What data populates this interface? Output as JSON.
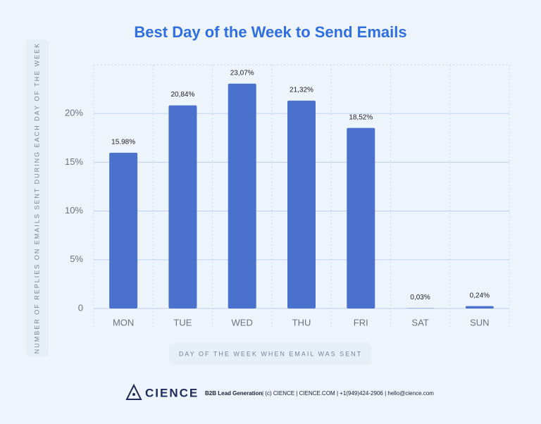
{
  "chart_data": {
    "type": "bar",
    "title": "Best Day of the Week to Send Emails",
    "y_label": "NUMBER OF REPLIES ON EMAILS SENT DURING EACH DAY OF THE WEEK",
    "x_label": "DAY OF THE WEEK WHEN EMAIL WAS SENT",
    "categories": [
      "MON",
      "TUE",
      "WED",
      "THU",
      "FRI",
      "SAT",
      "SUN"
    ],
    "values": [
      15.98,
      20.84,
      23.07,
      21.32,
      18.52,
      0.03,
      0.24
    ],
    "value_labels": [
      "15.98%",
      "20,84%",
      "23,07%",
      "21,32%",
      "18,52%",
      "0,03%",
      "0,24%"
    ],
    "color": "#4a72cc",
    "ylim": [
      0,
      25
    ],
    "yticks": [
      0,
      {
        "value": 5,
        "label": "5%"
      },
      {
        "value": 10,
        "label": "10%"
      },
      {
        "value": 15,
        "label": "15%"
      },
      {
        "value": 20,
        "label": "20%"
      }
    ],
    "grid": true
  },
  "footer": {
    "brand": "CIENCE",
    "tagline": "B2B Lead Generation",
    "contact": "| (c) CIENCE | CIENCE.COM | +1(949)424-2906 | hello@cience.com"
  }
}
